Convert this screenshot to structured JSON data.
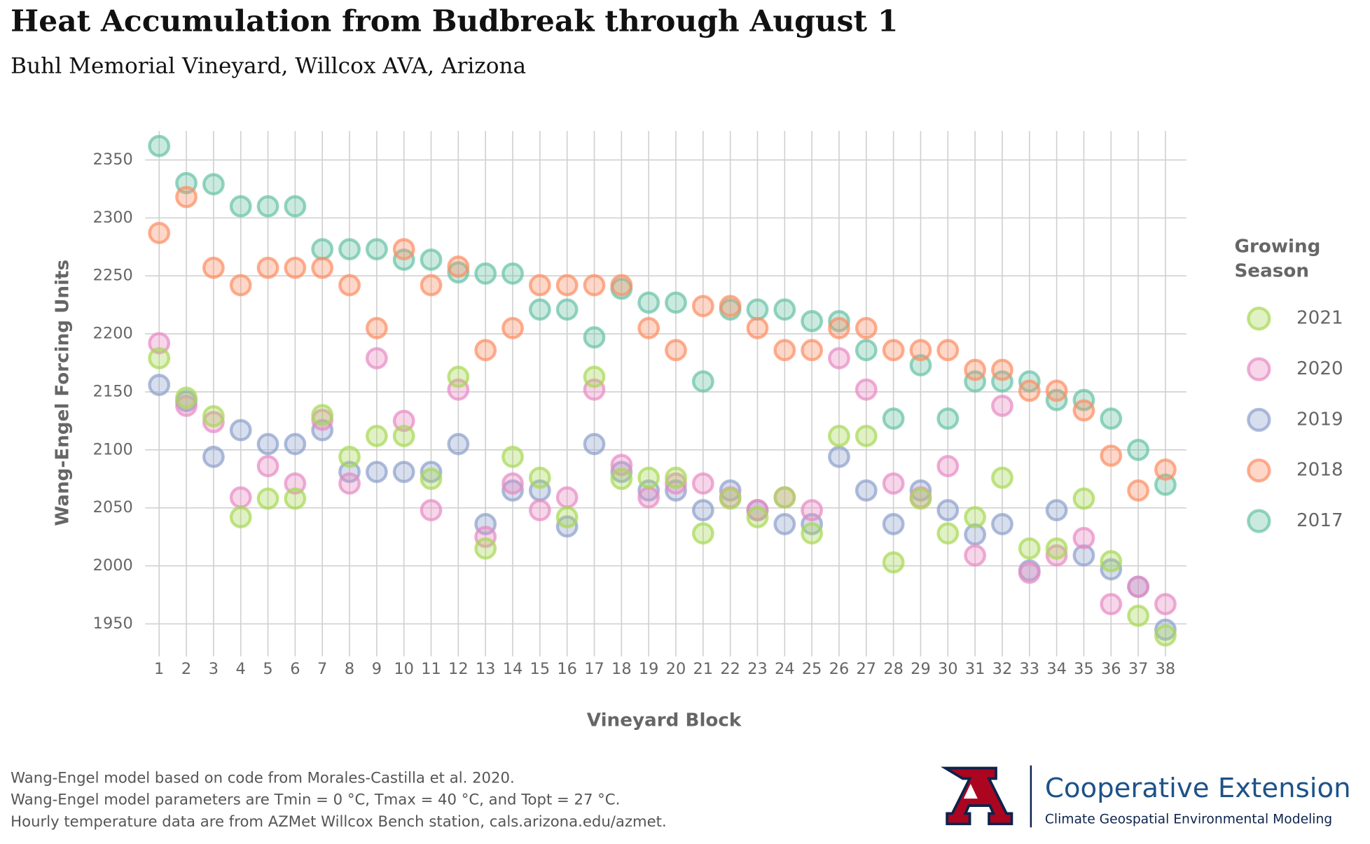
{
  "chart_data": {
    "type": "scatter",
    "title": "Heat Accumulation from Budbreak through August 1",
    "subtitle": "Buhl Memorial Vineyard, Willcox AVA, Arizona",
    "x_label": "Vineyard Block",
    "y_label": "Wang-Engel Forcing Units",
    "legend_title": [
      "Growing",
      "Season"
    ],
    "legend_position": "right",
    "grid": true,
    "categories": [
      "1",
      "2",
      "3",
      "4",
      "5",
      "6",
      "7",
      "8",
      "9",
      "10",
      "11",
      "12",
      "13",
      "14",
      "15",
      "16",
      "17",
      "18",
      "19",
      "20",
      "21",
      "22",
      "23",
      "24",
      "25",
      "26",
      "27",
      "28",
      "29",
      "30",
      "31",
      "32",
      "33",
      "34",
      "35",
      "36",
      "37",
      "38"
    ],
    "ylim": [
      1922,
      2375
    ],
    "yticks": [
      1950,
      2000,
      2050,
      2100,
      2150,
      2200,
      2250,
      2300,
      2350
    ],
    "series": [
      {
        "name": "2021",
        "color": "#a6d854",
        "values": [
          2179,
          2145,
          2129,
          2042,
          2058,
          2058,
          2130,
          2094,
          2112,
          2112,
          2075,
          2163,
          2015,
          2094,
          2076,
          2042,
          2163,
          2075,
          2076,
          2076,
          2028,
          2058,
          2042,
          2059,
          2028,
          2112,
          2112,
          2003,
          2058,
          2028,
          2042,
          2076,
          2015,
          2015,
          2058,
          2004,
          1957,
          1940
        ]
      },
      {
        "name": "2020",
        "color": "#e78ac3",
        "values": [
          2192,
          2138,
          2124,
          2059,
          2086,
          2071,
          2126,
          2071,
          2179,
          2125,
          2048,
          2152,
          2025,
          2071,
          2048,
          2059,
          2152,
          2087,
          2059,
          2071,
          2071,
          2059,
          2048,
          2059,
          2048,
          2179,
          2152,
          2071,
          2059,
          2086,
          2009,
          2138,
          1994,
          2009,
          2024,
          1967,
          1982,
          1967
        ]
      },
      {
        "name": "2019",
        "color": "#8da0cb",
        "values": [
          2156,
          2142,
          2094,
          2117,
          2105,
          2105,
          2117,
          2081,
          2081,
          2081,
          2081,
          2105,
          2036,
          2065,
          2065,
          2034,
          2105,
          2081,
          2065,
          2065,
          2048,
          2065,
          2048,
          2036,
          2036,
          2094,
          2065,
          2036,
          2065,
          2048,
          2027,
          2036,
          1996,
          2048,
          2009,
          1997,
          1982,
          1945
        ]
      },
      {
        "name": "2018",
        "color": "#fc8d62",
        "values": [
          2287,
          2318,
          2257,
          2242,
          2257,
          2257,
          2257,
          2242,
          2205,
          2273,
          2242,
          2258,
          2186,
          2205,
          2242,
          2242,
          2242,
          2242,
          2205,
          2186,
          2224,
          2224,
          2205,
          2186,
          2186,
          2205,
          2205,
          2186,
          2186,
          2186,
          2169,
          2169,
          2151,
          2151,
          2134,
          2095,
          2065,
          2083
        ]
      },
      {
        "name": "2017",
        "color": "#66c2a5",
        "values": [
          2362,
          2330,
          2329,
          2310,
          2310,
          2310,
          2273,
          2273,
          2273,
          2264,
          2264,
          2253,
          2252,
          2252,
          2221,
          2221,
          2197,
          2239,
          2227,
          2227,
          2159,
          2221,
          2221,
          2221,
          2211,
          2211,
          2186,
          2127,
          2173,
          2127,
          2159,
          2159,
          2159,
          2143,
          2143,
          2127,
          2100,
          2070
        ]
      }
    ]
  },
  "footnotes": [
    "Wang-Engel model based on code from Morales-Castilla et al. 2020.",
    "Wang-Engel model parameters are Tmin = 0 °C, Tmax = 40 °C, and Topt = 27 °C.",
    "Hourly temperature data are from AZMet Willcox Bench station, cals.arizona.edu/azmet."
  ],
  "logo": {
    "title": "Cooperative Extension",
    "subtitle": "Climate Geospatial Environmental Modeling"
  }
}
